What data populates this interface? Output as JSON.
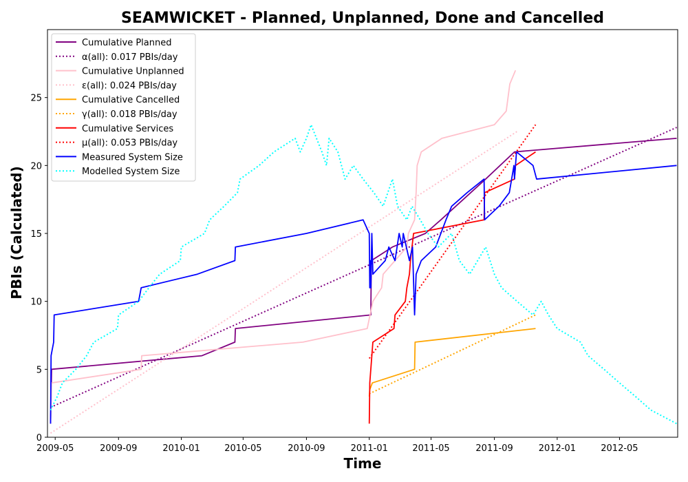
{
  "chart_data": {
    "type": "line",
    "title": "SEAMWICKET - Planned, Unplanned, Done  and Cancelled",
    "xlabel": "Time",
    "ylabel": "PBIs (Calculated)",
    "xlim": [
      "2009-04-16",
      "2012-08-22"
    ],
    "ylim": [
      0,
      30
    ],
    "xticks": [
      {
        "date": "2009-05-01",
        "label": "2009-05"
      },
      {
        "date": "2009-09-01",
        "label": "2009-09"
      },
      {
        "date": "2010-01-01",
        "label": "2010-01"
      },
      {
        "date": "2010-05-01",
        "label": "2010-05"
      },
      {
        "date": "2010-09-01",
        "label": "2010-09"
      },
      {
        "date": "2011-01-01",
        "label": "2011-01"
      },
      {
        "date": "2011-05-01",
        "label": "2011-05"
      },
      {
        "date": "2011-09-01",
        "label": "2011-09"
      },
      {
        "date": "2012-01-01",
        "label": "2012-01"
      },
      {
        "date": "2012-05-01",
        "label": "2012-05"
      }
    ],
    "yticks": [
      0,
      5,
      10,
      15,
      20,
      25
    ],
    "grid": false,
    "legend_position": "top-left",
    "series": [
      {
        "name": "Cumulative Planned",
        "color": "#800080",
        "style": "solid",
        "points": [
          [
            "2009-04-22",
            1
          ],
          [
            "2009-04-23",
            3
          ],
          [
            "2009-04-24",
            5
          ],
          [
            "2010-02-10",
            6
          ],
          [
            "2010-04-15",
            7
          ],
          [
            "2010-04-16",
            8
          ],
          [
            "2011-01-04",
            9
          ],
          [
            "2011-01-05",
            13
          ],
          [
            "2011-02-15",
            14
          ],
          [
            "2011-04-20",
            15
          ],
          [
            "2011-05-20",
            16
          ],
          [
            "2011-08-15",
            19
          ],
          [
            "2011-10-10",
            21
          ],
          [
            "2012-08-20",
            22
          ]
        ]
      },
      {
        "name": "α(all): 0.017 PBIs/day",
        "color": "#800080",
        "style": "dotted",
        "points": [
          [
            "2009-04-22",
            2.2
          ],
          [
            "2012-08-20",
            22.8
          ]
        ]
      },
      {
        "name": "Cumulative Unplanned",
        "color": "#ffc0cb",
        "style": "solid",
        "points": [
          [
            "2009-04-22",
            1
          ],
          [
            "2009-04-24",
            4
          ],
          [
            "2009-10-15",
            5
          ],
          [
            "2009-10-16",
            6
          ],
          [
            "2010-08-25",
            7
          ],
          [
            "2010-12-28",
            8
          ],
          [
            "2011-01-08",
            10
          ],
          [
            "2011-01-25",
            11
          ],
          [
            "2011-01-28",
            12
          ],
          [
            "2011-02-20",
            13
          ],
          [
            "2011-03-15",
            14
          ],
          [
            "2011-03-18",
            15
          ],
          [
            "2011-03-30",
            16
          ],
          [
            "2011-04-02",
            18
          ],
          [
            "2011-04-04",
            20
          ],
          [
            "2011-04-12",
            21
          ],
          [
            "2011-05-22",
            22
          ],
          [
            "2011-09-01",
            23
          ],
          [
            "2011-09-24",
            24
          ],
          [
            "2011-10-01",
            26
          ],
          [
            "2011-10-12",
            27
          ]
        ]
      },
      {
        "name": "ε(all): 0.024 PBIs/day",
        "color": "#ffc0cb",
        "style": "dotted",
        "points": [
          [
            "2009-04-22",
            0.3
          ],
          [
            "2011-10-15",
            22.5
          ]
        ]
      },
      {
        "name": "Cumulative Cancelled",
        "color": "#ffa500",
        "style": "solid",
        "points": [
          [
            "2011-01-01",
            3
          ],
          [
            "2011-01-02",
            3.5
          ],
          [
            "2011-01-07",
            4
          ],
          [
            "2011-03-30",
            5
          ],
          [
            "2011-03-31",
            7
          ],
          [
            "2011-11-20",
            8
          ]
        ]
      },
      {
        "name": "γ(all): 0.018 PBIs/day",
        "color": "#ffa500",
        "style": "dotted",
        "points": [
          [
            "2011-01-01",
            3.2
          ],
          [
            "2011-11-20",
            9
          ]
        ]
      },
      {
        "name": "Cumulative Services",
        "color": "#ff0000",
        "style": "solid",
        "points": [
          [
            "2011-01-01",
            1
          ],
          [
            "2011-01-02",
            4
          ],
          [
            "2011-01-04",
            5
          ],
          [
            "2011-01-08",
            7
          ],
          [
            "2011-02-18",
            8
          ],
          [
            "2011-02-20",
            9
          ],
          [
            "2011-03-12",
            10
          ],
          [
            "2011-03-15",
            11
          ],
          [
            "2011-03-20",
            12
          ],
          [
            "2011-03-22",
            13
          ],
          [
            "2011-03-28",
            15
          ],
          [
            "2011-08-12",
            16
          ],
          [
            "2011-08-13",
            18
          ],
          [
            "2011-10-10",
            19
          ],
          [
            "2011-10-12",
            20
          ],
          [
            "2011-11-20",
            21
          ]
        ]
      },
      {
        "name": "μ(all): 0.053 PBIs/day",
        "color": "#ff0000",
        "style": "dotted",
        "points": [
          [
            "2011-01-01",
            5.8
          ],
          [
            "2011-11-20",
            23
          ]
        ]
      },
      {
        "name": "Measured System Size",
        "color": "#0000ff",
        "style": "solid",
        "points": [
          [
            "2009-04-22",
            1
          ],
          [
            "2009-04-23",
            6
          ],
          [
            "2009-04-28",
            7
          ],
          [
            "2009-04-29",
            9
          ],
          [
            "2009-10-10",
            10
          ],
          [
            "2009-10-15",
            11
          ],
          [
            "2010-02-01",
            12
          ],
          [
            "2010-04-15",
            13
          ],
          [
            "2010-04-16",
            14
          ],
          [
            "2010-09-01",
            15
          ],
          [
            "2010-12-20",
            16
          ],
          [
            "2011-01-01",
            15
          ],
          [
            "2011-01-02",
            11
          ],
          [
            "2011-01-03",
            13
          ],
          [
            "2011-01-04",
            11
          ],
          [
            "2011-01-06",
            15
          ],
          [
            "2011-01-08",
            12
          ],
          [
            "2011-02-01",
            13
          ],
          [
            "2011-02-08",
            14
          ],
          [
            "2011-02-20",
            13
          ],
          [
            "2011-02-28",
            15
          ],
          [
            "2011-03-06",
            14
          ],
          [
            "2011-03-08",
            15
          ],
          [
            "2011-03-20",
            13
          ],
          [
            "2011-03-26",
            14
          ],
          [
            "2011-03-30",
            9
          ],
          [
            "2011-04-02",
            12
          ],
          [
            "2011-04-12",
            13
          ],
          [
            "2011-05-10",
            14
          ],
          [
            "2011-05-30",
            16
          ],
          [
            "2011-06-10",
            17
          ],
          [
            "2011-07-10",
            18
          ],
          [
            "2011-08-12",
            19
          ],
          [
            "2011-08-13",
            16
          ],
          [
            "2011-09-10",
            17
          ],
          [
            "2011-09-30",
            18
          ],
          [
            "2011-10-09",
            20
          ],
          [
            "2011-10-10",
            19
          ],
          [
            "2011-10-14",
            21
          ],
          [
            "2011-11-15",
            20
          ],
          [
            "2011-11-22",
            19
          ],
          [
            "2012-08-20",
            20
          ]
        ]
      },
      {
        "name": "Modelled System Size",
        "color": "#00ffff",
        "style": "dotted",
        "points": [
          [
            "2009-04-22",
            2
          ],
          [
            "2009-05-05",
            3
          ],
          [
            "2009-05-15",
            4
          ],
          [
            "2009-06-10",
            5
          ],
          [
            "2009-07-01",
            6
          ],
          [
            "2009-07-15",
            7
          ],
          [
            "2009-08-30",
            8
          ],
          [
            "2009-09-01",
            9
          ],
          [
            "2009-10-10",
            10
          ],
          [
            "2009-10-30",
            11
          ],
          [
            "2009-11-20",
            12
          ],
          [
            "2009-12-30",
            13
          ],
          [
            "2010-01-01",
            14
          ],
          [
            "2010-02-15",
            15
          ],
          [
            "2010-02-25",
            16
          ],
          [
            "2010-03-25",
            17
          ],
          [
            "2010-04-20",
            18
          ],
          [
            "2010-04-25",
            19
          ],
          [
            "2010-06-01",
            20
          ],
          [
            "2010-06-30",
            21
          ],
          [
            "2010-08-10",
            22
          ],
          [
            "2010-08-20",
            21
          ],
          [
            "2010-09-01",
            22
          ],
          [
            "2010-09-10",
            23
          ],
          [
            "2010-10-01",
            21
          ],
          [
            "2010-10-10",
            20
          ],
          [
            "2010-10-15",
            22
          ],
          [
            "2010-11-01",
            21
          ],
          [
            "2010-11-15",
            19
          ],
          [
            "2010-12-01",
            20
          ],
          [
            "2010-12-20",
            19
          ],
          [
            "2011-01-10",
            18
          ],
          [
            "2011-01-28",
            17
          ],
          [
            "2011-02-15",
            19
          ],
          [
            "2011-02-25",
            17
          ],
          [
            "2011-03-15",
            16
          ],
          [
            "2011-03-25",
            17
          ],
          [
            "2011-04-10",
            16
          ],
          [
            "2011-04-25",
            15
          ],
          [
            "2011-05-15",
            14
          ],
          [
            "2011-06-10",
            15
          ],
          [
            "2011-06-25",
            13
          ],
          [
            "2011-07-15",
            12
          ],
          [
            "2011-08-15",
            14
          ],
          [
            "2011-09-01",
            12
          ],
          [
            "2011-09-15",
            11
          ],
          [
            "2011-10-15",
            10
          ],
          [
            "2011-11-15",
            9
          ],
          [
            "2011-12-01",
            10
          ],
          [
            "2011-12-15",
            9
          ],
          [
            "2012-01-01",
            8
          ],
          [
            "2012-02-15",
            7
          ],
          [
            "2012-03-01",
            6
          ],
          [
            "2012-04-01",
            5
          ],
          [
            "2012-05-01",
            4
          ],
          [
            "2012-06-01",
            3
          ],
          [
            "2012-07-01",
            2
          ],
          [
            "2012-08-20",
            1
          ]
        ]
      }
    ]
  }
}
